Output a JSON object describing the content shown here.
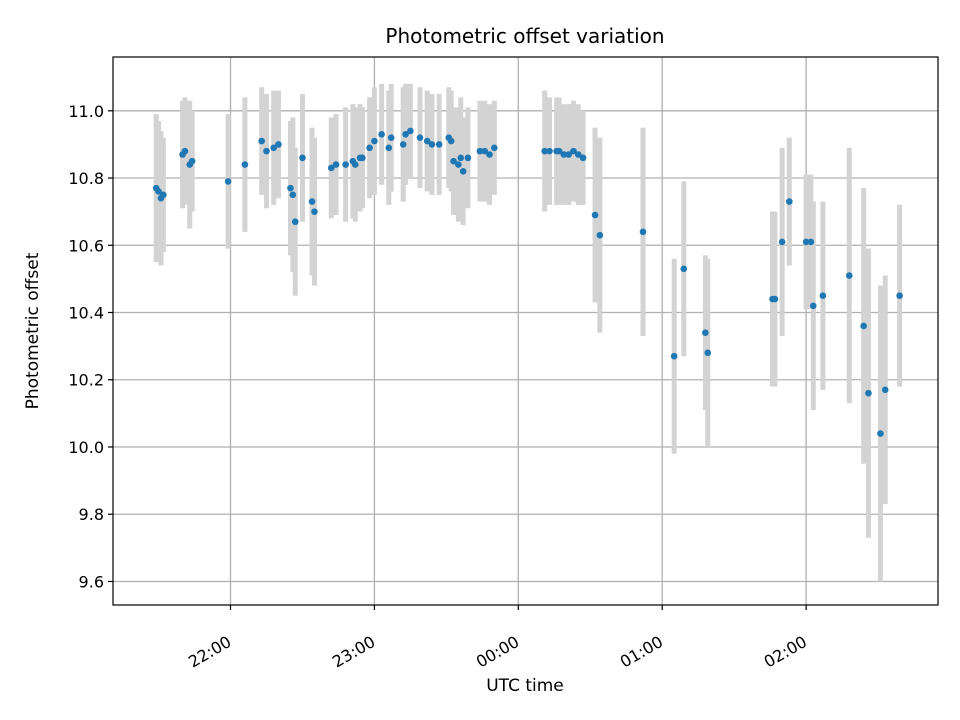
{
  "chart_data": {
    "type": "scatter",
    "title": "Photometric offset variation",
    "xlabel": "UTC time",
    "ylabel": "Photometric offset",
    "x_unit": "hours_utc",
    "xlim": [
      "21:11",
      "02:55"
    ],
    "ylim": [
      9.53,
      11.16
    ],
    "grid": true,
    "x_ticks": [
      {
        "time": "22:00",
        "label": "22:00"
      },
      {
        "time": "23:00",
        "label": "23:00"
      },
      {
        "time": "00:00",
        "label": "00:00"
      },
      {
        "time": "01:00",
        "label": "01:00"
      },
      {
        "time": "02:00",
        "label": "02:00"
      }
    ],
    "y_ticks": [
      {
        "value": 9.6,
        "label": "9.6"
      },
      {
        "value": 9.8,
        "label": "9.8"
      },
      {
        "value": 10.0,
        "label": "10.0"
      },
      {
        "value": 10.2,
        "label": "10.2"
      },
      {
        "value": 10.4,
        "label": "10.4"
      },
      {
        "value": 10.6,
        "label": "10.6"
      },
      {
        "value": 10.8,
        "label": "10.8"
      },
      {
        "value": 11.0,
        "label": "11.0"
      }
    ],
    "colors": {
      "marker": "#1f77b4",
      "errorbar": "#d3d3d3",
      "grid": "#b0b0b0"
    },
    "series": [
      {
        "points": [
          {
            "t": "21:29",
            "y": 10.77,
            "err": 0.22
          },
          {
            "t": "21:30",
            "y": 10.76,
            "err": 0.21
          },
          {
            "t": "21:31",
            "y": 10.74,
            "err": 0.2
          },
          {
            "t": "21:32",
            "y": 10.75,
            "err": 0.17
          },
          {
            "t": "21:40",
            "y": 10.87,
            "err": 0.16
          },
          {
            "t": "21:41",
            "y": 10.88,
            "err": 0.16
          },
          {
            "t": "21:43",
            "y": 10.84,
            "err": 0.19
          },
          {
            "t": "21:44",
            "y": 10.85,
            "err": 0.15
          },
          {
            "t": "21:59",
            "y": 10.79,
            "err": 0.2
          },
          {
            "t": "22:06",
            "y": 10.84,
            "err": 0.2
          },
          {
            "t": "22:13",
            "y": 10.91,
            "err": 0.16
          },
          {
            "t": "22:15",
            "y": 10.88,
            "err": 0.17
          },
          {
            "t": "22:18",
            "y": 10.89,
            "err": 0.17
          },
          {
            "t": "22:20",
            "y": 10.9,
            "err": 0.16
          },
          {
            "t": "22:25",
            "y": 10.77,
            "err": 0.2
          },
          {
            "t": "22:26",
            "y": 10.75,
            "err": 0.23
          },
          {
            "t": "22:27",
            "y": 10.67,
            "err": 0.22
          },
          {
            "t": "22:30",
            "y": 10.86,
            "err": 0.19
          },
          {
            "t": "22:34",
            "y": 10.73,
            "err": 0.22
          },
          {
            "t": "22:35",
            "y": 10.7,
            "err": 0.22
          },
          {
            "t": "22:42",
            "y": 10.83,
            "err": 0.15
          },
          {
            "t": "22:44",
            "y": 10.84,
            "err": 0.15
          },
          {
            "t": "22:48",
            "y": 10.84,
            "err": 0.17
          },
          {
            "t": "22:51",
            "y": 10.85,
            "err": 0.17
          },
          {
            "t": "22:52",
            "y": 10.84,
            "err": 0.17
          },
          {
            "t": "22:54",
            "y": 10.86,
            "err": 0.16
          },
          {
            "t": "22:55",
            "y": 10.86,
            "err": 0.15
          },
          {
            "t": "22:58",
            "y": 10.89,
            "err": 0.15
          },
          {
            "t": "23:00",
            "y": 10.91,
            "err": 0.16
          },
          {
            "t": "23:03",
            "y": 10.93,
            "err": 0.15
          },
          {
            "t": "23:06",
            "y": 10.89,
            "err": 0.17
          },
          {
            "t": "23:07",
            "y": 10.92,
            "err": 0.16
          },
          {
            "t": "23:12",
            "y": 10.9,
            "err": 0.17
          },
          {
            "t": "23:13",
            "y": 10.93,
            "err": 0.15
          },
          {
            "t": "23:15",
            "y": 10.94,
            "err": 0.14
          },
          {
            "t": "23:19",
            "y": 10.92,
            "err": 0.15
          },
          {
            "t": "23:22",
            "y": 10.91,
            "err": 0.15
          },
          {
            "t": "23:24",
            "y": 10.9,
            "err": 0.15
          },
          {
            "t": "23:27",
            "y": 10.9,
            "err": 0.15
          },
          {
            "t": "23:31",
            "y": 10.92,
            "err": 0.15
          },
          {
            "t": "23:32",
            "y": 10.91,
            "err": 0.15
          },
          {
            "t": "23:33",
            "y": 10.85,
            "err": 0.16
          },
          {
            "t": "23:35",
            "y": 10.84,
            "err": 0.17
          },
          {
            "t": "23:36",
            "y": 10.86,
            "err": 0.18
          },
          {
            "t": "23:37",
            "y": 10.82,
            "err": 0.16
          },
          {
            "t": "23:39",
            "y": 10.86,
            "err": 0.15
          },
          {
            "t": "23:44",
            "y": 10.88,
            "err": 0.15
          },
          {
            "t": "23:46",
            "y": 10.88,
            "err": 0.15
          },
          {
            "t": "23:48",
            "y": 10.87,
            "err": 0.15
          },
          {
            "t": "23:50",
            "y": 10.89,
            "err": 0.14
          },
          {
            "t": "00:11",
            "y": 10.88,
            "err": 0.18
          },
          {
            "t": "00:13",
            "y": 10.88,
            "err": 0.16
          },
          {
            "t": "00:16",
            "y": 10.88,
            "err": 0.16
          },
          {
            "t": "00:17",
            "y": 10.88,
            "err": 0.16
          },
          {
            "t": "00:19",
            "y": 10.87,
            "err": 0.15
          },
          {
            "t": "00:21",
            "y": 10.87,
            "err": 0.15
          },
          {
            "t": "00:23",
            "y": 10.88,
            "err": 0.15
          },
          {
            "t": "00:25",
            "y": 10.87,
            "err": 0.15
          },
          {
            "t": "00:27",
            "y": 10.86,
            "err": 0.14
          },
          {
            "t": "00:32",
            "y": 10.69,
            "err": 0.26
          },
          {
            "t": "00:34",
            "y": 10.63,
            "err": 0.29
          },
          {
            "t": "00:52",
            "y": 10.64,
            "err": 0.31
          },
          {
            "t": "01:05",
            "y": 10.27,
            "err": 0.29
          },
          {
            "t": "01:09",
            "y": 10.53,
            "err": 0.26
          },
          {
            "t": "01:18",
            "y": 10.34,
            "err": 0.23
          },
          {
            "t": "01:19",
            "y": 10.28,
            "err": 0.28
          },
          {
            "t": "01:46",
            "y": 10.44,
            "err": 0.26
          },
          {
            "t": "01:47",
            "y": 10.44,
            "err": 0.26
          },
          {
            "t": "01:50",
            "y": 10.61,
            "err": 0.28
          },
          {
            "t": "01:53",
            "y": 10.73,
            "err": 0.19
          },
          {
            "t": "02:00",
            "y": 10.61,
            "err": 0.2
          },
          {
            "t": "02:02",
            "y": 10.61,
            "err": 0.2
          },
          {
            "t": "02:03",
            "y": 10.42,
            "err": 0.31
          },
          {
            "t": "02:07",
            "y": 10.45,
            "err": 0.28
          },
          {
            "t": "02:18",
            "y": 10.51,
            "err": 0.38
          },
          {
            "t": "02:24",
            "y": 10.36,
            "err": 0.41
          },
          {
            "t": "02:26",
            "y": 10.16,
            "err": 0.43
          },
          {
            "t": "02:31",
            "y": 10.04,
            "err": 0.44
          },
          {
            "t": "02:33",
            "y": 10.17,
            "err": 0.34
          },
          {
            "t": "02:39",
            "y": 10.45,
            "err": 0.27
          }
        ]
      }
    ]
  }
}
